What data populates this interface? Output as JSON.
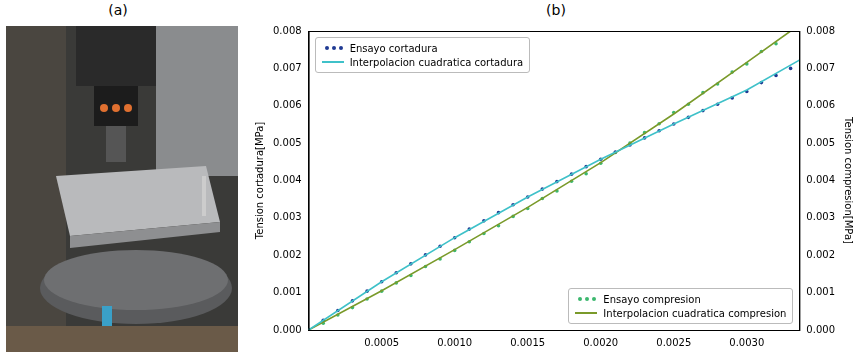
{
  "panel_labels": [
    "(a)",
    "(b)"
  ],
  "chart_data": {
    "type": "scatter",
    "y_label": "Tension cortadura[MPa]",
    "y2_label": "Tension compresion[MPa]",
    "xlim": [
      0,
      0.00336
    ],
    "xticks": [
      {
        "value": 0.0005,
        "label": "0.0005"
      },
      {
        "value": 0.001,
        "label": "0.0010"
      },
      {
        "value": 0.0015,
        "label": "0.0015"
      },
      {
        "value": 0.002,
        "label": "0.0020"
      },
      {
        "value": 0.0025,
        "label": "0.0025"
      },
      {
        "value": 0.003,
        "label": "0.0030"
      }
    ],
    "ylim": [
      0,
      0.008
    ],
    "yticks": [
      {
        "value": 0,
        "label": "0.000"
      },
      {
        "value": 0.001,
        "label": "0.001"
      },
      {
        "value": 0.002,
        "label": "0.002"
      },
      {
        "value": 0.003,
        "label": "0.003"
      },
      {
        "value": 0.004,
        "label": "0.004"
      },
      {
        "value": 0.005,
        "label": "0.005"
      },
      {
        "value": 0.006,
        "label": "0.006"
      },
      {
        "value": 0.007,
        "label": "0.007"
      },
      {
        "value": 0.008,
        "label": "0.008"
      }
    ],
    "y2lim": [
      0,
      0.008
    ],
    "y2ticks": [
      {
        "value": 0,
        "label": "0.000"
      },
      {
        "value": 0.001,
        "label": "0.001"
      },
      {
        "value": 0.002,
        "label": "0.002"
      },
      {
        "value": 0.003,
        "label": "0.003"
      },
      {
        "value": 0.004,
        "label": "0.004"
      },
      {
        "value": 0.005,
        "label": "0.005"
      },
      {
        "value": 0.006,
        "label": "0.006"
      },
      {
        "value": 0.007,
        "label": "0.007"
      },
      {
        "value": 0.008,
        "label": "0.008"
      }
    ],
    "grid": false,
    "series": [
      {
        "name": "Ensayo cortadura",
        "type": "scatter",
        "marker": "circle",
        "color": "#1f3a93",
        "legend": "upper left",
        "x": [
          0,
          0.0001,
          0.0002,
          0.0003,
          0.0004,
          0.0005,
          0.0006,
          0.0007,
          0.0008,
          0.0009,
          0.001,
          0.0011,
          0.0012,
          0.0013,
          0.0014,
          0.0015,
          0.0016,
          0.0017,
          0.0018,
          0.0019,
          0.002,
          0.0021,
          0.0022,
          0.0023,
          0.0024,
          0.0025,
          0.0026,
          0.0027,
          0.0028,
          0.0029,
          0.003,
          0.0031,
          0.0032,
          0.0033
        ],
        "values": [
          0,
          0.00026,
          0.00052,
          0.00078,
          0.00104,
          0.00129,
          0.00153,
          0.00177,
          0.00201,
          0.00224,
          0.00247,
          0.0027,
          0.00292,
          0.00314,
          0.00335,
          0.00356,
          0.00377,
          0.00397,
          0.00417,
          0.00437,
          0.00457,
          0.00476,
          0.00495,
          0.00514,
          0.00533,
          0.00551,
          0.00569,
          0.00587,
          0.00604,
          0.00621,
          0.00638,
          0.00662,
          0.00681,
          0.007
        ]
      },
      {
        "name": "Interpolacion cuadratica cortadura",
        "type": "line",
        "line_style": "solid",
        "color": "#3fc1c9",
        "legend": "upper left",
        "x": [
          0,
          0.0005,
          0.001,
          0.0015,
          0.002,
          0.0025,
          0.003,
          0.00336
        ],
        "values": [
          0,
          0.00129,
          0.00247,
          0.00356,
          0.00457,
          0.00551,
          0.00642,
          0.00722
        ]
      },
      {
        "name": "Ensayo compresion",
        "type": "scatter",
        "marker": "circle",
        "color": "#3cb86e",
        "legend": "lower right",
        "axis": "y2",
        "x": [
          0,
          0.0001,
          0.0002,
          0.0003,
          0.0004,
          0.0005,
          0.0006,
          0.0007,
          0.0008,
          0.0009,
          0.001,
          0.0011,
          0.0012,
          0.0013,
          0.0014,
          0.0015,
          0.0016,
          0.0017,
          0.0018,
          0.0019,
          0.002,
          0.0021,
          0.0022,
          0.0023,
          0.0024,
          0.0025,
          0.0026,
          0.0027,
          0.0028,
          0.0029,
          0.003,
          0.0031,
          0.0032
        ],
        "values": [
          0,
          0.00018,
          0.0004,
          0.0006,
          0.00083,
          0.00104,
          0.00126,
          0.00146,
          0.0017,
          0.0019,
          0.00213,
          0.00236,
          0.00258,
          0.00279,
          0.00304,
          0.00325,
          0.00352,
          0.00372,
          0.00398,
          0.00418,
          0.00446,
          0.00475,
          0.005,
          0.00528,
          0.00552,
          0.00582,
          0.00604,
          0.00635,
          0.00658,
          0.0069,
          0.00712,
          0.00745,
          0.00766
        ]
      },
      {
        "name": "Interpolacion cuadratica compresion",
        "type": "line",
        "line_style": "solid",
        "color": "#7a9a2a",
        "legend": "lower right",
        "axis": "y2",
        "x": [
          0,
          0.0005,
          0.001,
          0.0015,
          0.002,
          0.0025,
          0.003,
          0.0033
        ],
        "values": [
          0,
          0.00105,
          0.00215,
          0.00328,
          0.00448,
          0.00578,
          0.00716,
          0.008
        ]
      }
    ]
  }
}
